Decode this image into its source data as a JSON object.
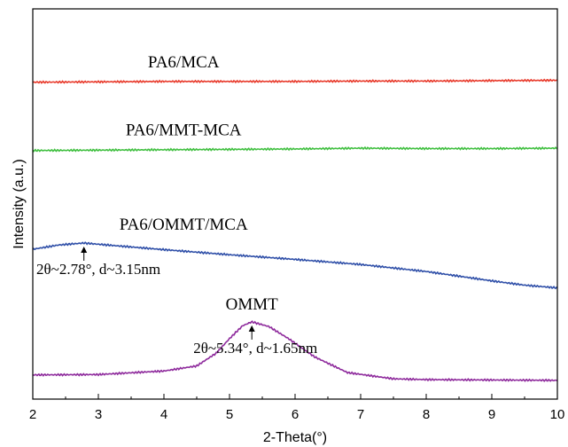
{
  "chart_data": {
    "type": "line",
    "xlabel": "2-Theta(°)",
    "ylabel": "Intensity (a.u.)",
    "xlim": [
      2,
      10
    ],
    "xticks": [
      "2",
      "3",
      "4",
      "5",
      "6",
      "7",
      "8",
      "9",
      "10"
    ],
    "ylim": [
      0,
      1
    ],
    "grid": false,
    "legend": "none",
    "series": [
      {
        "name": "PA6/MCA",
        "color": "#e8392a",
        "x": [
          2,
          3,
          4,
          5,
          6,
          7,
          8,
          9,
          10
        ],
        "y": [
          0.812,
          0.813,
          0.814,
          0.814,
          0.814,
          0.815,
          0.815,
          0.816,
          0.817
        ]
      },
      {
        "name": "PA6/MMT-MCA",
        "color": "#3fbf3f",
        "x": [
          2,
          3,
          4,
          5,
          6,
          7,
          8,
          9,
          10
        ],
        "y": [
          0.637,
          0.638,
          0.639,
          0.64,
          0.641,
          0.643,
          0.642,
          0.642,
          0.643
        ]
      },
      {
        "name": "PA6/OMMT/MCA",
        "color": "#2f4fa8",
        "x": [
          2,
          2.4,
          2.78,
          3.2,
          4,
          5,
          6,
          7,
          8,
          9,
          9.5,
          10
        ],
        "y": [
          0.384,
          0.395,
          0.4,
          0.394,
          0.383,
          0.37,
          0.358,
          0.345,
          0.327,
          0.303,
          0.292,
          0.285
        ]
      },
      {
        "name": "OMMT",
        "color": "#8e2a9c",
        "x": [
          2,
          3,
          4,
          4.5,
          4.8,
          5.0,
          5.2,
          5.34,
          5.6,
          5.9,
          6.3,
          6.8,
          7.5,
          8,
          9,
          10
        ],
        "y": [
          0.062,
          0.063,
          0.072,
          0.085,
          0.118,
          0.155,
          0.188,
          0.198,
          0.186,
          0.155,
          0.108,
          0.068,
          0.052,
          0.05,
          0.049,
          0.048
        ]
      }
    ],
    "series_labels": [
      "PA6/MCA",
      "PA6/MMT-MCA",
      "PA6/OMMT/MCA",
      "OMMT"
    ],
    "annotations": [
      {
        "text": "2θ~2.78°, d~3.15nm",
        "x": 2.78,
        "target_series": 2
      },
      {
        "text": "2θ~5.34°, d~1.65nm",
        "x": 5.34,
        "target_series": 3
      }
    ]
  }
}
